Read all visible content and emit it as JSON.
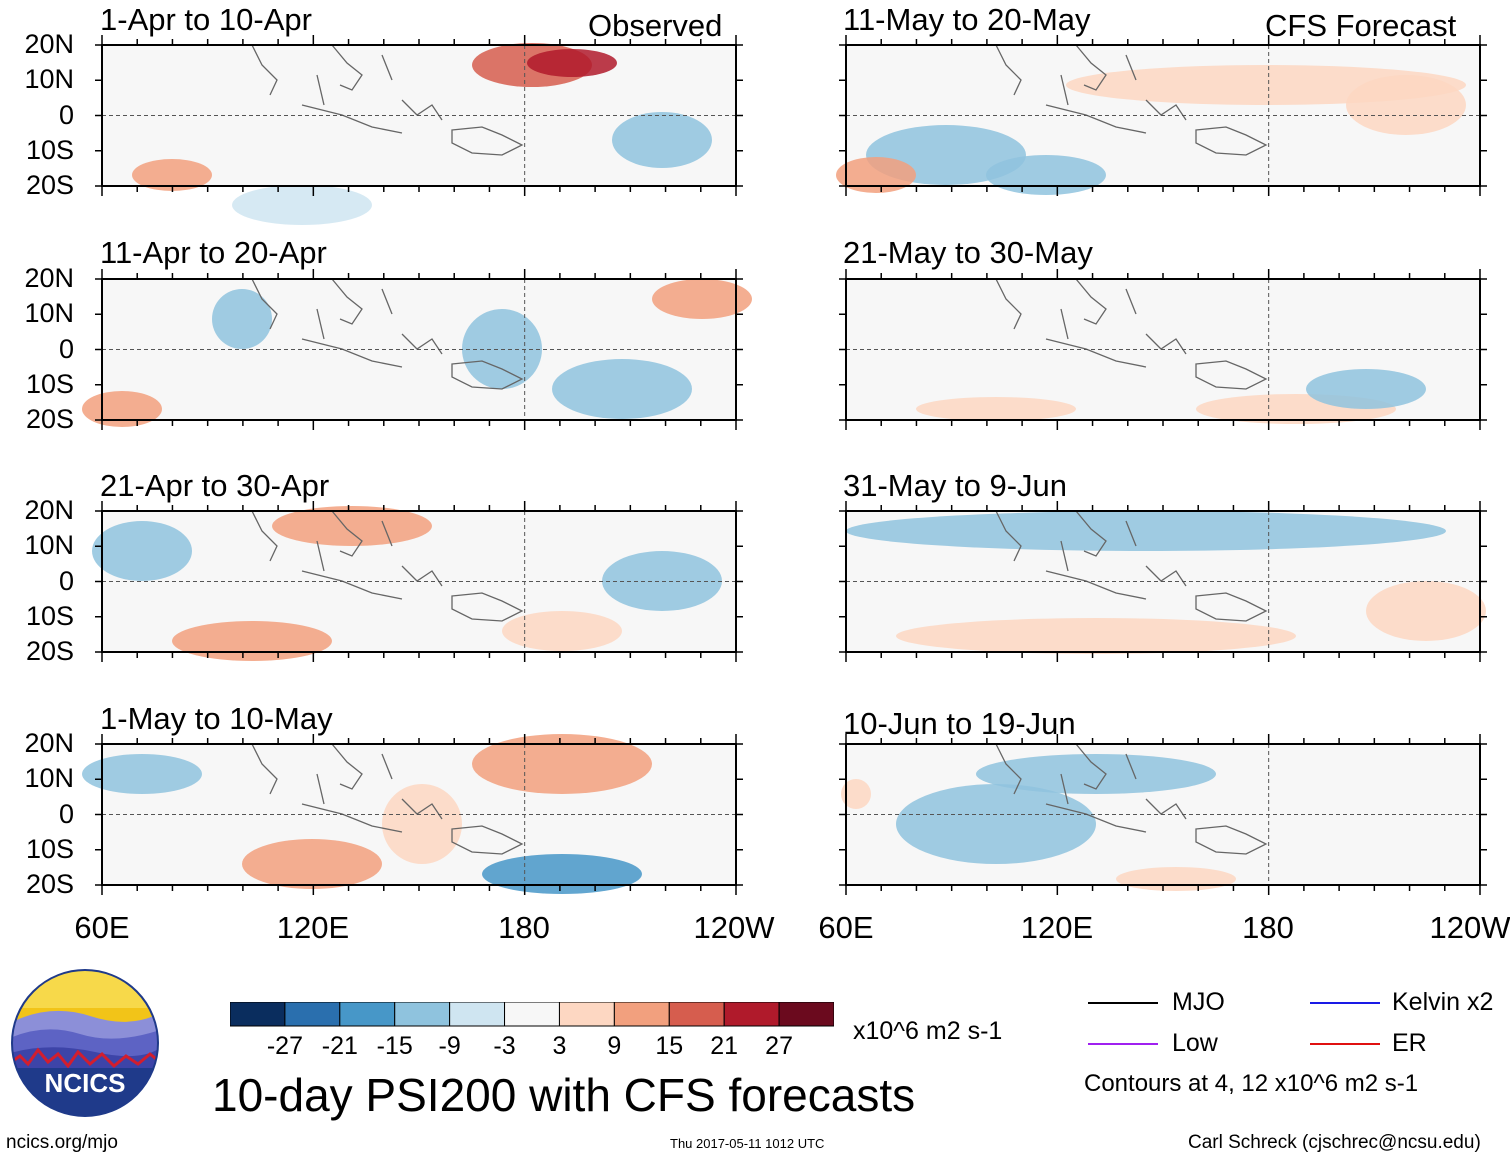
{
  "chart_data": {
    "type": "heatmap",
    "title": "10-day PSI200 with CFS forecasts",
    "colorbar": {
      "ticks": [
        "-27",
        "-21",
        "-15",
        "-9",
        "-3",
        "3",
        "9",
        "15",
        "21",
        "27"
      ],
      "units": "x10^6 m2 s-1",
      "colors": [
        "#0a2d5e",
        "#2a6fae",
        "#4797c8",
        "#8fc3de",
        "#cfe5f1",
        "#f7f7f7",
        "#fdd7c2",
        "#f2a07e",
        "#d65d4e",
        "#b01a2b",
        "#6b0a1e"
      ]
    },
    "lat_ticks": [
      "20N",
      "10N",
      "0",
      "10S",
      "20S"
    ],
    "lon_ticks": [
      "60E",
      "120E",
      "180",
      "120W"
    ],
    "lat_range": [
      -20,
      20
    ],
    "lon_range": [
      60,
      240
    ],
    "observed_tag": "Observed",
    "forecast_tag": "CFS Forecast",
    "panels_observed": [
      {
        "title": "1-Apr to 10-Apr"
      },
      {
        "title": "11-Apr to 20-Apr"
      },
      {
        "title": "21-Apr to 30-Apr"
      },
      {
        "title": "1-May to 10-May"
      }
    ],
    "panels_forecast": [
      {
        "title": "11-May to 20-May"
      },
      {
        "title": "21-May to 30-May"
      },
      {
        "title": "31-May to 9-Jun"
      },
      {
        "title": "10-Jun to 19-Jun"
      }
    ],
    "legend": [
      {
        "label": "MJO",
        "color": "#000000"
      },
      {
        "label": "Kelvin x2",
        "color": "#1a1ae6"
      },
      {
        "label": "Low",
        "color": "#a020f0"
      },
      {
        "label": "ER",
        "color": "#e01010"
      }
    ],
    "contour_note": "Contours at 4, 12 x10^6 m2 s-1"
  },
  "logo": {
    "text": "NCICS"
  },
  "footer": {
    "left": "ncics.org/mjo",
    "center": "Thu 2017-05-11 1012 UTC",
    "right": "Carl Schreck (cjschrec@ncsu.edu)"
  }
}
